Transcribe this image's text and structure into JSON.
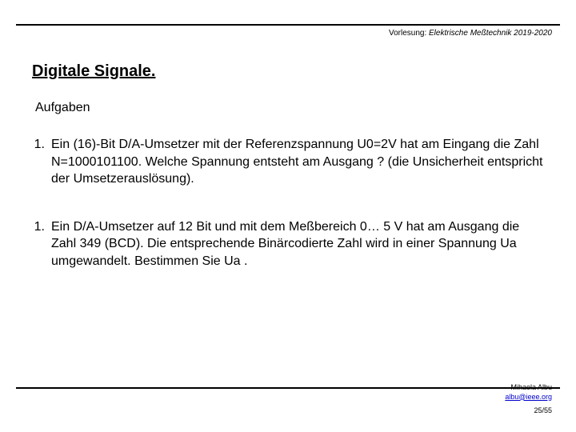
{
  "header": {
    "prefix": "Vorlesung: ",
    "course": "Elektrische Meßtechnik 2019-2020"
  },
  "title": "Digitale Signale.",
  "subtitle": "Aufgaben",
  "items": [
    {
      "num": "1.",
      "text": "Ein (16)-Bit D/A-Umsetzer mit der Referenzspannung U0=2V hat am Eingang die Zahl N=1000101100. Welche Spannung entsteht am Ausgang ? (die Unsicherheit entspricht der Umsetzerauslösung)."
    },
    {
      "num": "1.",
      "text": "Ein D/A-Umsetzer auf 12 Bit und mit dem Meßbereich 0… 5 V hat am Ausgang die Zahl 349 (BCD). Die entsprechende Binärcodierte Zahl wird in einer Spannung Ua umgewandelt. Bestimmen Sie Ua ."
    }
  ],
  "footer": {
    "author": "Mihaela Albu",
    "email": "albu@ieee.org",
    "page": "25/55"
  },
  "colors": {
    "text": "#000000",
    "link": "#0000cc",
    "background": "#ffffff",
    "rule": "#000000"
  }
}
